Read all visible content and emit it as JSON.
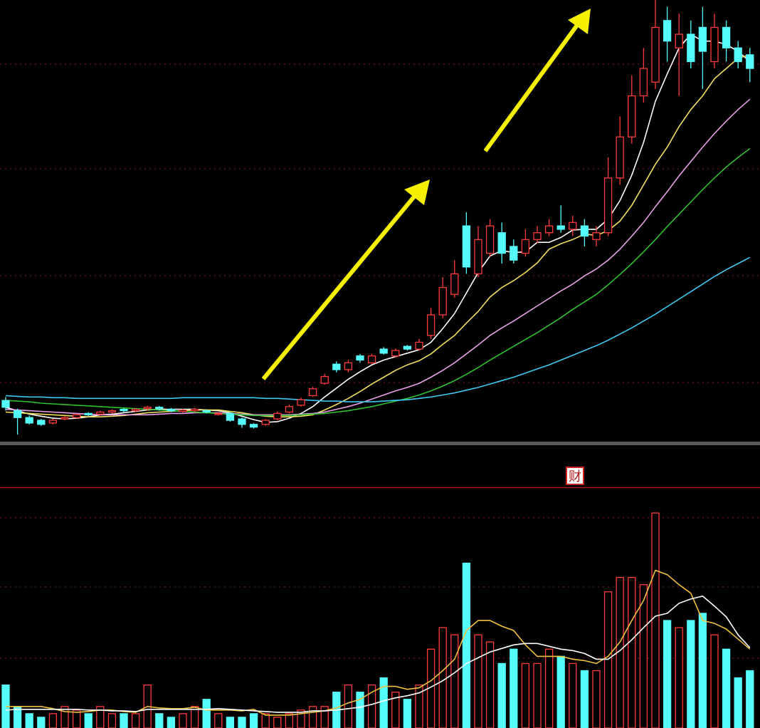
{
  "chart_data": [
    {
      "type": "candlestick",
      "ylim": [
        0,
        64
      ],
      "up_color": "#ff3b3b",
      "down_color": "#54fcfc",
      "open": [
        5.5,
        4.0,
        3.0,
        2.6,
        2.2,
        2.8,
        3.0,
        3.6,
        3.5,
        3.8,
        4.2,
        4.0,
        4.3,
        4.5,
        4.2,
        3.9,
        4.0,
        4.0,
        3.5,
        3.6,
        2.8,
        2.0,
        2.0,
        2.8,
        3.8,
        4.8,
        6.2,
        8.0,
        10.8,
        10.0,
        12.0,
        11.0,
        13.0,
        12.0,
        13.4,
        13.0,
        15.0,
        18.0,
        21.0,
        31.0,
        24.0,
        27.0,
        30.0,
        28.0,
        27.0,
        29.0,
        30.0,
        31.0,
        30.5,
        31.0,
        29.0,
        30.0,
        38.0,
        44.0,
        50.0,
        52.0,
        61.0,
        57.0,
        59.0,
        60.0,
        55.0,
        60.0,
        57.0,
        56.0
      ],
      "high": [
        6.0,
        4.3,
        3.3,
        2.8,
        2.8,
        3.2,
        3.6,
        3.8,
        4.0,
        4.2,
        4.4,
        4.4,
        4.7,
        4.7,
        4.4,
        4.3,
        4.4,
        4.2,
        3.8,
        3.8,
        3.0,
        2.2,
        2.8,
        3.9,
        4.9,
        5.9,
        7.5,
        9.4,
        11.2,
        11.4,
        12.3,
        12.3,
        13.3,
        13.1,
        13.6,
        14.5,
        19.0,
        23.5,
        26.0,
        33.0,
        31.0,
        32.0,
        31.5,
        29.0,
        30.5,
        31.0,
        32.0,
        34.0,
        32.5,
        32.0,
        31.0,
        41.0,
        47.0,
        53.0,
        57.0,
        64.0,
        63.0,
        62.0,
        61.0,
        63.0,
        62.0,
        61.0,
        58.0,
        57.0
      ],
      "low": [
        4.0,
        0.5,
        2.0,
        1.8,
        2.0,
        2.6,
        2.8,
        3.2,
        3.3,
        3.6,
        3.8,
        3.8,
        4.0,
        4.0,
        3.8,
        3.7,
        3.8,
        3.6,
        3.3,
        2.4,
        1.5,
        1.4,
        1.8,
        2.6,
        3.6,
        4.6,
        6.0,
        7.8,
        9.6,
        9.6,
        11.0,
        10.8,
        12.2,
        11.8,
        12.8,
        12.8,
        14.5,
        17.5,
        20.5,
        24.0,
        23.5,
        26.5,
        25.5,
        25.5,
        26.5,
        28.5,
        29.5,
        30.0,
        29.5,
        28.0,
        28.0,
        29.5,
        37.0,
        43.0,
        49.0,
        51.0,
        55.0,
        50.0,
        54.0,
        51.0,
        54.0,
        55.0,
        54.0,
        52.0
      ],
      "close": [
        4.5,
        3.0,
        2.2,
        2.0,
        2.6,
        3.0,
        3.4,
        3.4,
        3.8,
        4.0,
        4.0,
        4.2,
        4.5,
        4.3,
        4.0,
        4.1,
        4.2,
        3.8,
        3.6,
        2.6,
        2.0,
        1.6,
        2.6,
        3.6,
        4.6,
        5.6,
        7.2,
        9.0,
        10.0,
        11.0,
        11.4,
        12.0,
        12.4,
        12.8,
        13.0,
        14.0,
        18.0,
        22.0,
        24.0,
        25.0,
        29.0,
        31.0,
        27.0,
        26.0,
        29.0,
        30.0,
        31.0,
        30.5,
        31.5,
        29.5,
        30.0,
        38.0,
        44.0,
        50.0,
        54.0,
        60.0,
        58.0,
        59.0,
        55.0,
        56.5,
        60.0,
        57.0,
        55.0,
        54.0
      ],
      "series": [
        {
          "color": "#ffffff",
          "values": [
            4.5,
            4.0,
            3.5,
            3.2,
            2.9,
            2.8,
            2.9,
            3.1,
            3.4,
            3.5,
            3.7,
            3.9,
            4.1,
            4.2,
            4.2,
            4.2,
            4.2,
            4.1,
            4.0,
            3.7,
            3.2,
            2.7,
            2.3,
            2.4,
            2.9,
            3.6,
            4.6,
            6.0,
            7.3,
            8.6,
            9.7,
            10.7,
            11.4,
            11.9,
            12.4,
            12.9,
            14.0,
            16.0,
            18.2,
            21.2,
            24.2,
            26.6,
            27.4,
            27.1,
            27.2,
            28.6,
            28.6,
            29.3,
            30.4,
            30.5,
            30.5,
            32.0,
            34.7,
            38.4,
            43.2,
            49.2,
            53.2,
            57.0,
            59.0,
            58.0,
            58.0,
            57.5,
            56.5,
            55.0
          ]
        },
        {
          "color": "#f0e060",
          "values": [
            3.8,
            3.7,
            3.6,
            3.5,
            3.4,
            3.3,
            3.2,
            3.1,
            3.1,
            3.2,
            3.3,
            3.5,
            3.7,
            3.8,
            3.9,
            4.0,
            4.1,
            4.1,
            4.1,
            3.9,
            3.7,
            3.4,
            3.2,
            3.1,
            3.1,
            3.2,
            3.4,
            4.1,
            4.9,
            5.8,
            6.8,
            7.9,
            8.9,
            9.9,
            10.7,
            11.3,
            12.3,
            13.7,
            15.0,
            16.8,
            18.5,
            20.6,
            22.0,
            23.0,
            24.2,
            25.6,
            27.6,
            28.4,
            29.0,
            29.8,
            29.6,
            30.3,
            31.7,
            34.0,
            37.0,
            40.0,
            42.5,
            45.5,
            48.0,
            50.0,
            52.5,
            54.0,
            55.5,
            56.0
          ]
        },
        {
          "color": "#e8a0e8",
          "values": [
            4.2,
            4.1,
            4.0,
            3.9,
            3.8,
            3.7,
            3.6,
            3.5,
            3.4,
            3.4,
            3.4,
            3.4,
            3.4,
            3.5,
            3.6,
            3.6,
            3.7,
            3.7,
            3.7,
            3.6,
            3.5,
            3.4,
            3.4,
            3.4,
            3.4,
            3.5,
            3.6,
            3.8,
            4.2,
            4.6,
            5.1,
            5.7,
            6.3,
            6.9,
            7.4,
            8.0,
            8.9,
            9.9,
            11.0,
            12.3,
            13.6,
            15.0,
            16.1,
            17.1,
            18.2,
            19.3,
            20.4,
            21.5,
            22.5,
            23.7,
            24.7,
            26.0,
            27.6,
            29.5,
            31.5,
            33.8,
            36.0,
            38.3,
            40.4,
            42.5,
            44.5,
            46.3,
            48.0,
            49.5
          ]
        },
        {
          "color": "#30c030",
          "values": [
            5.5,
            5.4,
            5.3,
            5.1,
            5.0,
            4.9,
            4.8,
            4.7,
            4.6,
            4.5,
            4.4,
            4.3,
            4.2,
            4.1,
            4.0,
            3.9,
            3.8,
            3.7,
            3.6,
            3.5,
            3.4,
            3.3,
            3.3,
            3.3,
            3.3,
            3.4,
            3.5,
            3.6,
            3.8,
            4.0,
            4.3,
            4.6,
            5.0,
            5.4,
            5.8,
            6.3,
            6.9,
            7.6,
            8.4,
            9.3,
            10.3,
            11.4,
            12.4,
            13.4,
            14.4,
            15.4,
            16.5,
            17.6,
            18.8,
            19.9,
            21.0,
            22.4,
            23.9,
            25.5,
            27.2,
            29.0,
            30.9,
            32.7,
            34.5,
            36.3,
            38.0,
            39.6,
            41.0,
            42.3
          ]
        },
        {
          "color": "#40c8f0",
          "values": [
            6.2,
            6.1,
            6.0,
            6.0,
            5.9,
            5.9,
            5.8,
            5.8,
            5.8,
            5.8,
            5.8,
            5.8,
            5.8,
            5.8,
            5.8,
            5.9,
            5.9,
            5.9,
            5.9,
            5.9,
            5.9,
            5.9,
            5.8,
            5.8,
            5.7,
            5.6,
            5.5,
            5.4,
            5.4,
            5.3,
            5.3,
            5.3,
            5.4,
            5.5,
            5.6,
            5.8,
            6.0,
            6.3,
            6.6,
            7.0,
            7.4,
            7.9,
            8.4,
            8.9,
            9.5,
            10.1,
            10.7,
            11.4,
            12.1,
            12.8,
            13.5,
            14.3,
            15.2,
            16.1,
            17.1,
            18.1,
            19.2,
            20.3,
            21.4,
            22.5,
            23.6,
            24.6,
            25.5,
            26.4
          ]
        }
      ]
    },
    {
      "type": "bar",
      "ylim": [
        0,
        32
      ],
      "annotation": "财",
      "values": [
        6,
        3,
        2,
        1.5,
        2,
        3,
        2.5,
        2,
        3,
        2,
        2,
        2,
        6,
        2,
        1.5,
        2,
        3,
        4,
        2,
        1.5,
        1.5,
        2,
        2,
        1.5,
        2,
        2.5,
        3,
        3,
        5,
        6,
        5,
        6,
        7,
        5,
        4,
        6,
        11,
        14,
        13,
        23,
        13,
        12,
        9,
        11,
        9,
        9,
        11,
        10,
        9,
        8,
        8,
        19,
        21,
        21,
        20,
        30,
        15,
        14,
        15,
        16,
        13,
        11,
        7,
        8
      ],
      "series": [
        {
          "color": "#f0c040",
          "values": [
            3,
            3,
            3,
            3,
            2.7,
            2.3,
            2.2,
            2.3,
            2.5,
            2.5,
            2.3,
            2.2,
            3.0,
            2.8,
            2.7,
            2.7,
            2.9,
            2.5,
            2.5,
            2.5,
            2.4,
            2.6,
            1.8,
            1.8,
            1.8,
            2.0,
            2.2,
            2.4,
            2.8,
            3.5,
            4.0,
            5.0,
            5.8,
            5.8,
            5.4,
            5.6,
            6.6,
            8.0,
            9.6,
            13.6,
            15.0,
            15.0,
            14.2,
            13.6,
            11.6,
            10.0,
            10.0,
            10.0,
            9.6,
            9.4,
            9.0,
            10.0,
            12.0,
            15.0,
            17.8,
            22.0,
            21.4,
            20.0,
            18.8,
            15.0,
            14.6,
            13.8,
            12.4,
            11.0
          ]
        },
        {
          "color": "#ffffff",
          "values": [
            2.5,
            2.6,
            2.6,
            2.6,
            2.6,
            2.6,
            2.6,
            2.5,
            2.5,
            2.4,
            2.4,
            2.3,
            2.6,
            2.6,
            2.6,
            2.6,
            2.6,
            2.6,
            2.7,
            2.6,
            2.5,
            2.4,
            2.3,
            2.2,
            2.2,
            2.2,
            2.4,
            2.4,
            2.5,
            2.7,
            2.9,
            3.3,
            3.8,
            4.2,
            4.5,
            4.9,
            5.7,
            6.6,
            7.7,
            9.0,
            9.8,
            10.6,
            11.1,
            11.6,
            11.8,
            11.8,
            11.4,
            11.0,
            10.8,
            10.4,
            9.6,
            9.6,
            10.8,
            12.3,
            14.0,
            15.6,
            16.0,
            17.4,
            18.0,
            18.4,
            17.0,
            15.5,
            13.0,
            11.2
          ]
        }
      ]
    }
  ]
}
